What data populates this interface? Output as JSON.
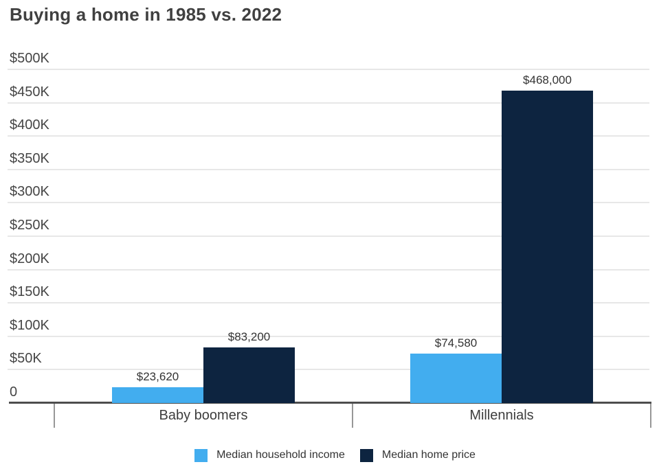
{
  "title": "Buying a home in 1985 vs. 2022",
  "colors": {
    "income_blue": "#42ADEF",
    "price_navy": "#0D2440",
    "gridline": "#e7e7e7",
    "baseline": "#4d4d4d",
    "axis_tick": "#979797",
    "title_text": "#404040",
    "axis_text": "#454545",
    "label_text": "#333333"
  },
  "chart_data": {
    "type": "bar",
    "title": "Buying a home in 1985 vs. 2022",
    "categories": [
      "Baby boomers",
      "Millennials"
    ],
    "series": [
      {
        "name": "Median household income",
        "color": "#42ADEF",
        "values": [
          23620,
          74580
        ],
        "labels": [
          "$23,620",
          "$74,580"
        ]
      },
      {
        "name": "Median home price",
        "color": "#0D2440",
        "values": [
          83200,
          468000
        ],
        "labels": [
          "$83,200",
          "$468,000"
        ]
      }
    ],
    "xlabel": "",
    "ylabel": "",
    "ylim": [
      0,
      500000
    ],
    "ytick_step": 50000,
    "ytick_labels": [
      "0",
      "$50K",
      "$100K",
      "$150K",
      "$200K",
      "$250K",
      "$300K",
      "$350K",
      "$400K",
      "$450K",
      "$500K"
    ],
    "grid": true,
    "legend_position": "bottom"
  }
}
